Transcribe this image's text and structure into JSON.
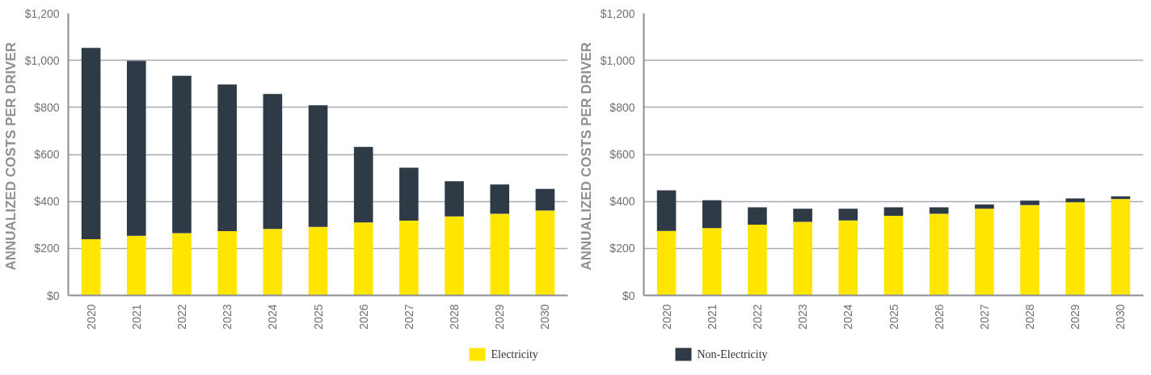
{
  "chart_data": [
    {
      "type": "bar",
      "stacked": true,
      "ylabel": "ANNUALIZED  COSTS PER DRIVER",
      "categories": [
        "2020",
        "2021",
        "2022",
        "2023",
        "2024",
        "2025",
        "2026",
        "2027",
        "2028",
        "2029",
        "2030"
      ],
      "series": [
        {
          "name": "Electricity",
          "color": "#ffe600",
          "values": [
            239,
            254,
            265,
            273,
            283,
            291,
            310,
            318,
            336,
            347,
            361
          ]
        },
        {
          "name": "Non-Electricity",
          "color": "#2e3a45",
          "values": [
            814,
            744,
            669,
            624,
            574,
            518,
            322,
            225,
            150,
            125,
            92
          ]
        }
      ],
      "ylim": [
        0,
        1200
      ],
      "yticks": [
        {
          "value": 0,
          "label": "$0"
        },
        {
          "value": 200,
          "label": "$200"
        },
        {
          "value": 400,
          "label": "$400"
        },
        {
          "value": 600,
          "label": "$600"
        },
        {
          "value": 800,
          "label": "$800"
        },
        {
          "value": 1000,
          "label": "$1,000"
        },
        {
          "value": 1200,
          "label": "$1,200"
        }
      ],
      "grid": "y",
      "legend": "bottom"
    },
    {
      "type": "bar",
      "stacked": true,
      "ylabel": "ANNUALIZED  COSTS PER DRIVER",
      "categories": [
        "2020",
        "2021",
        "2022",
        "2023",
        "2024",
        "2025",
        "2026",
        "2027",
        "2028",
        "2029",
        "2030"
      ],
      "series": [
        {
          "color": "#ffe600",
          "values": [
            274,
            286,
            301,
            313,
            319,
            339,
            347,
            369,
            384,
            396,
            410
          ]
        },
        {
          "color": "#2e3a45",
          "values": [
            173,
            119,
            74,
            56,
            50,
            36,
            28,
            18,
            19,
            17,
            11
          ]
        }
      ],
      "ylim": [
        0,
        1200
      ],
      "yticks": [
        {
          "value": 0,
          "label": "$0"
        },
        {
          "value": 200,
          "label": "$200"
        },
        {
          "value": 400,
          "label": "$400"
        },
        {
          "value": 600,
          "label": "$600"
        },
        {
          "value": 800,
          "label": "$800"
        },
        {
          "value": 1000,
          "label": "$1,000"
        },
        {
          "value": 1200,
          "label": "$1,200"
        }
      ],
      "grid": "y"
    }
  ]
}
